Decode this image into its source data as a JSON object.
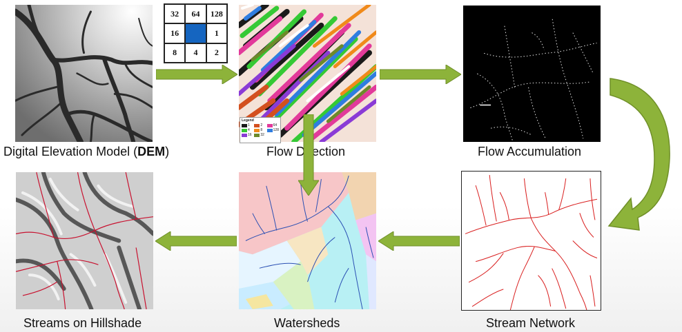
{
  "captions": {
    "dem_prefix": "Digital Elevation Model (",
    "dem_bold": "DEM",
    "dem_suffix": ")",
    "flow_direction": "Flow Direction",
    "flow_accumulation": "Flow Accumulation",
    "stream_network": "Stream Network",
    "watersheds": "Watersheds",
    "streams_on_hillshade": "Streams on Hillshade"
  },
  "direction_grid": {
    "cells": [
      "32",
      "64",
      "128",
      "16",
      "",
      "1",
      "8",
      "4",
      "2"
    ],
    "center_color": "#1565c0"
  },
  "legend": {
    "title": "Legend",
    "items": [
      "1",
      "2",
      "4",
      "8",
      "16",
      "32",
      "64",
      "128"
    ]
  },
  "colors": {
    "arrow": "#8db33a",
    "stream": "#d91e1e"
  }
}
